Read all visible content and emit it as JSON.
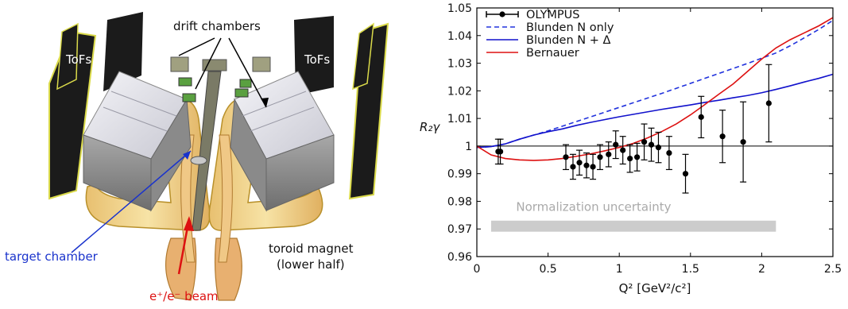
{
  "diagram": {
    "labels": {
      "drift_chambers": "drift chambers",
      "tofs_left": "ToFs",
      "tofs_right": "ToFs",
      "target_chamber": "target chamber",
      "beam": "e⁺/e⁻ beam",
      "toroid_magnet": "toroid magnet",
      "toroid_magnet_sub": "(lower half)"
    },
    "colors": {
      "target_arrow": "#1a33cc",
      "beam_arrow": "#dd1111",
      "coil": "#f2d890",
      "coil_edge": "#c8a040",
      "chamber": "#9a9a9a",
      "tof_panel": "#1a1a1a",
      "tof_edge": "#e6e64d"
    }
  },
  "chart_data": {
    "type": "scatter",
    "xlabel": "Q² [GeV²/c²]",
    "ylabel": "R₂γ",
    "xlim": [
      0,
      2.5
    ],
    "ylim": [
      0.96,
      1.05
    ],
    "xticks": [
      "0",
      "0.5",
      "1",
      "1.5",
      "2",
      "2.5"
    ],
    "yticks": [
      "0.96",
      "0.97",
      "0.98",
      "0.99",
      "1",
      "1.01",
      "1.02",
      "1.03",
      "1.04",
      "1.05"
    ],
    "legend_position": "top-left",
    "reference_line": 1.0,
    "band": {
      "label": "Normalization uncertainty",
      "x": [
        0.1,
        2.1
      ],
      "y": [
        0.969,
        0.973
      ],
      "color": "#cccccc"
    },
    "series": [
      {
        "name": "OLYMPUS",
        "kind": "points",
        "color": "#000000",
        "x": [
          0.15,
          0.165,
          0.625,
          0.675,
          0.72,
          0.77,
          0.815,
          0.865,
          0.925,
          0.975,
          1.025,
          1.075,
          1.125,
          1.175,
          1.225,
          1.275,
          1.35,
          1.465,
          1.575,
          1.725,
          1.87,
          2.05
        ],
        "y": [
          0.998,
          0.998,
          0.996,
          0.9925,
          0.994,
          0.993,
          0.9925,
          0.996,
          0.997,
          1.0005,
          0.9985,
          0.9955,
          0.996,
          1.0015,
          1.0005,
          0.9995,
          0.9975,
          0.99,
          1.0105,
          1.0035,
          1.0015,
          1.0155
        ],
        "err": [
          0.0045,
          0.0045,
          0.0045,
          0.0045,
          0.0045,
          0.0045,
          0.0045,
          0.0045,
          0.0045,
          0.005,
          0.005,
          0.005,
          0.005,
          0.0065,
          0.006,
          0.0055,
          0.006,
          0.007,
          0.0075,
          0.0095,
          0.0145,
          0.014
        ]
      },
      {
        "name": "Blunden N only",
        "kind": "line",
        "dash": true,
        "color": "#2233dd",
        "x": [
          0,
          0.1,
          0.2,
          0.3,
          0.4,
          0.5,
          0.6,
          0.7,
          0.8,
          0.9,
          1.0,
          1.1,
          1.2,
          1.3,
          1.4,
          1.5,
          1.6,
          1.7,
          1.8,
          1.9,
          2.0,
          2.1,
          2.2,
          2.3,
          2.4,
          2.5
        ],
        "y": [
          0.9995,
          0.9998,
          1.0008,
          1.0025,
          1.004,
          1.0055,
          1.0072,
          1.0089,
          1.0106,
          1.0123,
          1.014,
          1.0157,
          1.0174,
          1.0191,
          1.0209,
          1.0227,
          1.0245,
          1.0263,
          1.0281,
          1.0299,
          1.0318,
          1.0337,
          1.0363,
          1.0392,
          1.0422,
          1.0455
        ]
      },
      {
        "name": "Blunden N + Δ",
        "kind": "line",
        "dash": false,
        "color": "#1111cc",
        "x": [
          0,
          0.1,
          0.2,
          0.3,
          0.4,
          0.5,
          0.6,
          0.7,
          0.8,
          0.9,
          1.0,
          1.1,
          1.2,
          1.3,
          1.4,
          1.5,
          1.6,
          1.7,
          1.8,
          1.9,
          2.0,
          2.1,
          2.2,
          2.3,
          2.4,
          2.5
        ],
        "y": [
          0.9995,
          0.9998,
          1.0008,
          1.0025,
          1.004,
          1.0052,
          1.0062,
          1.0075,
          1.0086,
          1.0096,
          1.0106,
          1.0115,
          1.0124,
          1.0133,
          1.0141,
          1.0149,
          1.0158,
          1.0166,
          1.0175,
          1.0183,
          1.0193,
          1.0205,
          1.0218,
          1.0232,
          1.0245,
          1.026
        ]
      },
      {
        "name": "Bernauer",
        "kind": "line",
        "dash": false,
        "color": "#dd1111",
        "x": [
          0,
          0.1,
          0.2,
          0.3,
          0.4,
          0.5,
          0.6,
          0.7,
          0.8,
          0.9,
          1.0,
          1.1,
          1.2,
          1.3,
          1.4,
          1.5,
          1.6,
          1.7,
          1.8,
          1.9,
          2.0,
          2.1,
          2.2,
          2.3,
          2.4,
          2.5
        ],
        "y": [
          1.0,
          0.9968,
          0.9955,
          0.995,
          0.9948,
          0.995,
          0.9955,
          0.9963,
          0.9972,
          0.9983,
          0.9995,
          1.001,
          1.003,
          1.0053,
          1.008,
          1.0113,
          1.015,
          1.0188,
          1.0225,
          1.027,
          1.0315,
          1.0355,
          1.0385,
          1.041,
          1.0435,
          1.0465
        ]
      }
    ],
    "legend": [
      {
        "label": "OLYMPUS",
        "symbol": "point",
        "color": "#000000"
      },
      {
        "label": "Blunden N only",
        "symbol": "dashed",
        "color": "#2233dd"
      },
      {
        "label": "Blunden N + Δ",
        "symbol": "solid",
        "color": "#1111cc"
      },
      {
        "label": "Bernauer",
        "symbol": "solid",
        "color": "#dd1111"
      }
    ]
  }
}
